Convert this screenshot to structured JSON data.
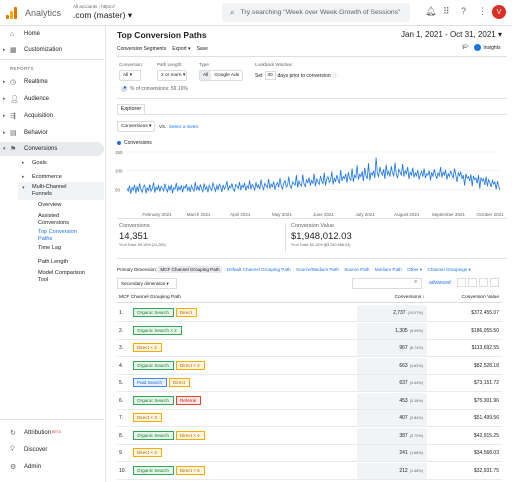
{
  "header": {
    "app_name": "Analytics",
    "account_crumb": "All accounts › https://",
    "view_name": ".com (master)",
    "search_placeholder": "Try searching \"Week over Week Growth of Sessions\"",
    "avatar_letter": "V"
  },
  "sidebar": {
    "home": "Home",
    "customization": "Customization",
    "reports_header": "REPORTS",
    "realtime": "Realtime",
    "audience": "Audience",
    "acquisition": "Acquisition",
    "behavior": "Behavior",
    "conversions": "Conversions",
    "goals": "Goals",
    "ecommerce": "Ecommerce",
    "mcf": "Multi-Channel Funnels",
    "mcf_items": [
      "Overview",
      "Assisted Conversions",
      "Top Conversion Paths",
      "Time Lag",
      "Path Length",
      "Model Comparison Tool"
    ],
    "attribution": "Attribution",
    "attribution_badge": "BETA",
    "discover": "Discover",
    "admin": "Admin"
  },
  "page": {
    "title": "Top Conversion Paths",
    "date_range": "Jan 1, 2021 - Oct 31, 2021",
    "conversion_segments": "Conversion Segments",
    "export": "Export",
    "save": "Save",
    "share_label": "",
    "insights": "Insights"
  },
  "controls": {
    "conversion_label": "Conversion:",
    "conversion_value": "All",
    "path_length_label": "Path Length:",
    "path_length_value": "2 or more",
    "type_label": "Type:",
    "type_all": "All",
    "type_ads": "Google Ads",
    "lookback_label": "Lookback Window:",
    "lookback_prefix": "Set",
    "lookback_days": "30",
    "lookback_suffix": "days prior to conversion",
    "pct_note": "% of conversions: 59.16%"
  },
  "explorer": {
    "tab": "Explorer",
    "metric": "Conversions",
    "vs": "VS.",
    "select_metric": "Select a metric"
  },
  "chart_data": {
    "type": "line",
    "series": [
      {
        "name": "Conversions"
      }
    ],
    "ylim": [
      0,
      150
    ],
    "yticks": [
      "150",
      "100",
      "50"
    ],
    "xticks": [
      "February 2021",
      "March 2021",
      "April 2021",
      "May 2021",
      "June 2021",
      "July 2021",
      "August 2021",
      "September 2021",
      "October 2021"
    ],
    "values": [
      52,
      45,
      60,
      38,
      55,
      48,
      62,
      40,
      58,
      44,
      66,
      50,
      42,
      57,
      61,
      39,
      54,
      47,
      63,
      45,
      52,
      68,
      41,
      56,
      49,
      60,
      44,
      58,
      53,
      46,
      65,
      50,
      43,
      59,
      48,
      62,
      40,
      55,
      51,
      67,
      45,
      57,
      49,
      61,
      42,
      58,
      53,
      64,
      47,
      56,
      43,
      60,
      52,
      45,
      70,
      48,
      58,
      46,
      63,
      51,
      44,
      66,
      50,
      57,
      42,
      61,
      53,
      47,
      68,
      55,
      45,
      60,
      49,
      64,
      58,
      43,
      62,
      51,
      56,
      72,
      47,
      59,
      54,
      66,
      50,
      45,
      63,
      58,
      52,
      70,
      48,
      61,
      55,
      67,
      46,
      59,
      53,
      74,
      50,
      63,
      57,
      48,
      69,
      55,
      62,
      51,
      76,
      58,
      49,
      66,
      60,
      54,
      78,
      52,
      64,
      57,
      71,
      49,
      62,
      68,
      55,
      80,
      59,
      51,
      67,
      73,
      56,
      62,
      84,
      58,
      53,
      70,
      66,
      61,
      88,
      55,
      72,
      63,
      59,
      90,
      64,
      57,
      76,
      68,
      82,
      60,
      74,
      66,
      92,
      58,
      79,
      70,
      63,
      86,
      72,
      65,
      95,
      60,
      78,
      84,
      68,
      74,
      98,
      63,
      81,
      70,
      88,
      76,
      66,
      102,
      72,
      84,
      79,
      92,
      68,
      96,
      80,
      74,
      106,
      70,
      88,
      82,
      115,
      76,
      90,
      84,
      98,
      72,
      108,
      86,
      78,
      120,
      74,
      94,
      88,
      100,
      80,
      135,
      92,
      84,
      110,
      96,
      88,
      104,
      78,
      116,
      90,
      98,
      84,
      112,
      94,
      86,
      122,
      90,
      80,
      104,
      96,
      88,
      118,
      84,
      100,
      92,
      110,
      78,
      96,
      88,
      108,
      82,
      94,
      86,
      102,
      76,
      90,
      98,
      84,
      106,
      80,
      92,
      88,
      100,
      74,
      96,
      84,
      104,
      90,
      78,
      94,
      86,
      110,
      82,
      96,
      88,
      102,
      76,
      92,
      84,
      100,
      88,
      80,
      106,
      90,
      70,
      94,
      86,
      96,
      78,
      88,
      60,
      92,
      80,
      84,
      72,
      90,
      58,
      86,
      76,
      80,
      66,
      88,
      52,
      82,
      72,
      78,
      62,
      84,
      58,
      76,
      68,
      56,
      74,
      64,
      70,
      50,
      72,
      58,
      48
    ]
  },
  "kpis": [
    {
      "label": "Conversions",
      "value": "14,351",
      "sub": "% of Total: 59.16% (24,259)"
    },
    {
      "label": "Conversion Value",
      "value": "$1,948,012.03",
      "sub": "% of Total: 60.10% ($3,240,968.03)"
    }
  ],
  "primary_dimension": {
    "label": "Primary Dimension:",
    "current": "MCF Channel Grouping Path",
    "links": [
      "Default Channel Grouping Path",
      "Source/Medium Path",
      "Source Path",
      "Medium Path",
      "Other ▾",
      "Channel Groupings ▾"
    ]
  },
  "secondary_dimension": "Secondary dimension",
  "advanced": "advanced",
  "table": {
    "headers": [
      "MCF Channel Grouping Path",
      "Conversions",
      "Conversion Value"
    ],
    "rows": [
      {
        "n": "1.",
        "path": [
          [
            "Organic Search",
            "os"
          ],
          [
            "Direct",
            "dr"
          ]
        ],
        "conv": "2,737",
        "pct": "(19.07%)",
        "value": "$372,455.07"
      },
      {
        "n": "2.",
        "path": [
          [
            "Organic Search × 2",
            "os"
          ]
        ],
        "conv": "1,305",
        "pct": "(9.09%)",
        "value": "$186,055.50"
      },
      {
        "n": "3.",
        "path": [
          [
            "Direct × 2",
            "dr"
          ]
        ],
        "conv": "967",
        "pct": "(6.74%)",
        "value": "$113,692.55"
      },
      {
        "n": "4.",
        "path": [
          [
            "Organic Search",
            "os"
          ],
          [
            "Direct × 2",
            "dr"
          ]
        ],
        "conv": "663",
        "pct": "(4.62%)",
        "value": "$82,528.18"
      },
      {
        "n": "5.",
        "path": [
          [
            "Paid Search",
            "ps"
          ],
          [
            "Direct",
            "dr"
          ]
        ],
        "conv": "637",
        "pct": "(4.44%)",
        "value": "$73,151.72"
      },
      {
        "n": "6.",
        "path": [
          [
            "Organic Search",
            "os"
          ],
          [
            "Referral",
            "rf"
          ]
        ],
        "conv": "453",
        "pct": "(3.16%)",
        "value": "$75,301.96"
      },
      {
        "n": "7.",
        "path": [
          [
            "Direct × 3",
            "dr"
          ]
        ],
        "conv": "407",
        "pct": "(2.84%)",
        "value": "$51,499.56"
      },
      {
        "n": "8.",
        "path": [
          [
            "Organic Search",
            "os"
          ],
          [
            "Direct × 4",
            "dr"
          ]
        ],
        "conv": "387",
        "pct": "(2.70%)",
        "value": "$42,915.25"
      },
      {
        "n": "9.",
        "path": [
          [
            "Direct × 4",
            "dr"
          ]
        ],
        "conv": "241",
        "pct": "(1.68%)",
        "value": "$34,568.03"
      },
      {
        "n": "10.",
        "path": [
          [
            "Organic Search",
            "os"
          ],
          [
            "Direct × 5",
            "dr"
          ]
        ],
        "conv": "212",
        "pct": "(1.48%)",
        "value": "$32,931.75"
      }
    ]
  }
}
